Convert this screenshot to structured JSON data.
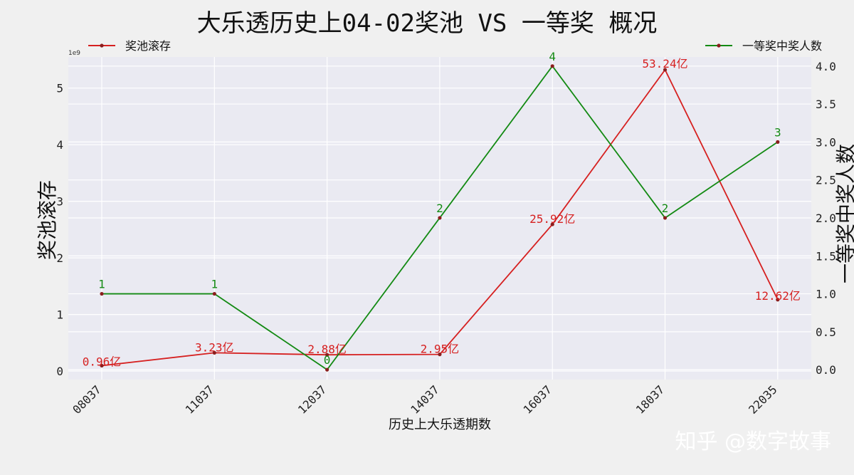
{
  "chart_data": {
    "type": "line",
    "title": "大乐透历史上04-02奖池 VS 一等奖 概况",
    "xlabel": "历史上大乐透期数",
    "ylabel_left": "奖池滚存",
    "ylabel_right": "一等奖中奖人数",
    "left_axis_offset_label": "1e9",
    "categories": [
      "08037",
      "11037",
      "12037",
      "14037",
      "16037",
      "18037",
      "22035"
    ],
    "left_axis": {
      "ylim": [
        -0.15,
        5.55
      ],
      "ticks": [
        0,
        1,
        2,
        3,
        4,
        5
      ]
    },
    "right_axis": {
      "ylim": [
        -0.13,
        4.12
      ],
      "ticks": [
        0.0,
        0.5,
        1.0,
        1.5,
        2.0,
        2.5,
        3.0,
        3.5,
        4.0
      ]
    },
    "series": [
      {
        "name": "奖池滚存",
        "axis": "left",
        "color": "#d62020",
        "values": [
          96000000,
          323000000,
          288000000,
          295000000,
          2592000000,
          5324000000,
          1262000000
        ],
        "labels": [
          "0.96亿",
          "3.23亿",
          "2.88亿",
          "2.95亿",
          "25.92亿",
          "53.24亿",
          "12.62亿"
        ]
      },
      {
        "name": "一等奖中奖人数",
        "axis": "right",
        "color": "#138a13",
        "values": [
          1,
          1,
          0,
          2,
          4,
          2,
          3
        ],
        "labels": [
          "1",
          "1",
          "0",
          "2",
          "4",
          "2",
          "3"
        ]
      }
    ],
    "legend": [
      "top-left",
      "top-right"
    ],
    "grid": true,
    "plot_background": "#eaeaf2",
    "marker_color": "#8b1e1e"
  },
  "watermark": "知乎 @数字故事"
}
